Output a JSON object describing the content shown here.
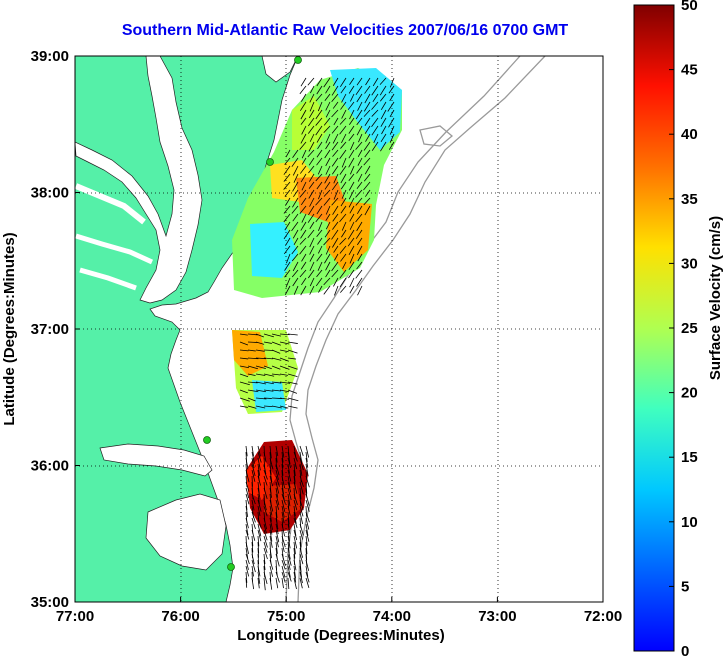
{
  "title": "Southern Mid-Atlantic Raw Velocities 2007/06/16 0700 GMT",
  "x_axis": {
    "label": "Longitude (Degrees:Minutes)",
    "ticks": [
      "77:00",
      "76:00",
      "75:00",
      "74:00",
      "73:00",
      "72:00"
    ]
  },
  "y_axis": {
    "label": "Latitude (Degrees:Minutes)",
    "ticks": [
      "39:00",
      "38:00",
      "37:00",
      "36:00",
      "35:00"
    ]
  },
  "colorbar": {
    "label": "Surface Velocity (cm/s)",
    "ticks": [
      "0",
      "5",
      "10",
      "15",
      "20",
      "25",
      "30",
      "35",
      "40",
      "45",
      "50"
    ],
    "min": 0,
    "max": 50,
    "colormap": "jet"
  },
  "colors": {
    "title": "#0000ee",
    "land": "#55f0a8",
    "bathymetry": "#9a9a9a",
    "vectors": "#000000",
    "stations": "#22cc22"
  },
  "grid": "dotted",
  "map_extent": {
    "lon": [
      -77,
      -72
    ],
    "lat": [
      35,
      39
    ]
  }
}
